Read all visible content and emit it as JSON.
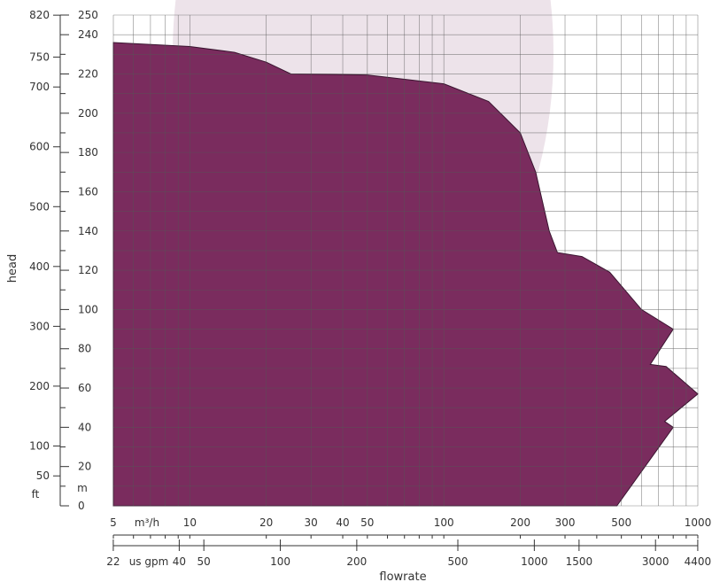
{
  "chart_data": {
    "type": "area",
    "title": "",
    "xlabel": "flowrate",
    "ylabel": "head",
    "x_scale": "log",
    "y_scale": "linear",
    "xlim_m3h": [
      5,
      1000
    ],
    "ylim_m": [
      0,
      250
    ],
    "grid": true,
    "colors": {
      "fill": "#7a2c5e",
      "watermark": "#ede3ea",
      "grid": "#555555",
      "axis": "#333333"
    },
    "axes": {
      "x_primary": {
        "unit": "m³/h",
        "ticks": [
          "5",
          "10",
          "20",
          "30",
          "40",
          "50",
          "100",
          "200",
          "300",
          "500",
          "1000"
        ]
      },
      "x_secondary": {
        "unit": "us gpm",
        "ticks": [
          "22",
          "40",
          "50",
          "100",
          "200",
          "500",
          "1000",
          "1500",
          "3000",
          "4400"
        ]
      },
      "y_primary": {
        "unit": "m",
        "ticks": [
          "0",
          "20",
          "40",
          "60",
          "80",
          "100",
          "120",
          "140",
          "160",
          "180",
          "200",
          "220",
          "240",
          "250"
        ]
      },
      "y_secondary": {
        "unit": "ft",
        "ticks": [
          "50",
          "100",
          "200",
          "300",
          "400",
          "500",
          "600",
          "700",
          "750",
          "820"
        ]
      }
    },
    "envelope": {
      "unit_x": "m³/h",
      "unit_y": "m",
      "points": [
        {
          "x": 5,
          "y": 0
        },
        {
          "x": 5,
          "y": 236
        },
        {
          "x": 10,
          "y": 234
        },
        {
          "x": 15,
          "y": 231
        },
        {
          "x": 20,
          "y": 226
        },
        {
          "x": 25,
          "y": 220
        },
        {
          "x": 50,
          "y": 219.5
        },
        {
          "x": 100,
          "y": 215
        },
        {
          "x": 150,
          "y": 206
        },
        {
          "x": 200,
          "y": 190
        },
        {
          "x": 230,
          "y": 170
        },
        {
          "x": 260,
          "y": 140
        },
        {
          "x": 280,
          "y": 129
        },
        {
          "x": 350,
          "y": 127
        },
        {
          "x": 450,
          "y": 119
        },
        {
          "x": 600,
          "y": 100
        },
        {
          "x": 800,
          "y": 90
        },
        {
          "x": 650,
          "y": 72
        },
        {
          "x": 750,
          "y": 71
        },
        {
          "x": 1000,
          "y": 57
        },
        {
          "x": 740,
          "y": 43
        },
        {
          "x": 800,
          "y": 40
        },
        {
          "x": 480,
          "y": 0
        }
      ]
    }
  }
}
